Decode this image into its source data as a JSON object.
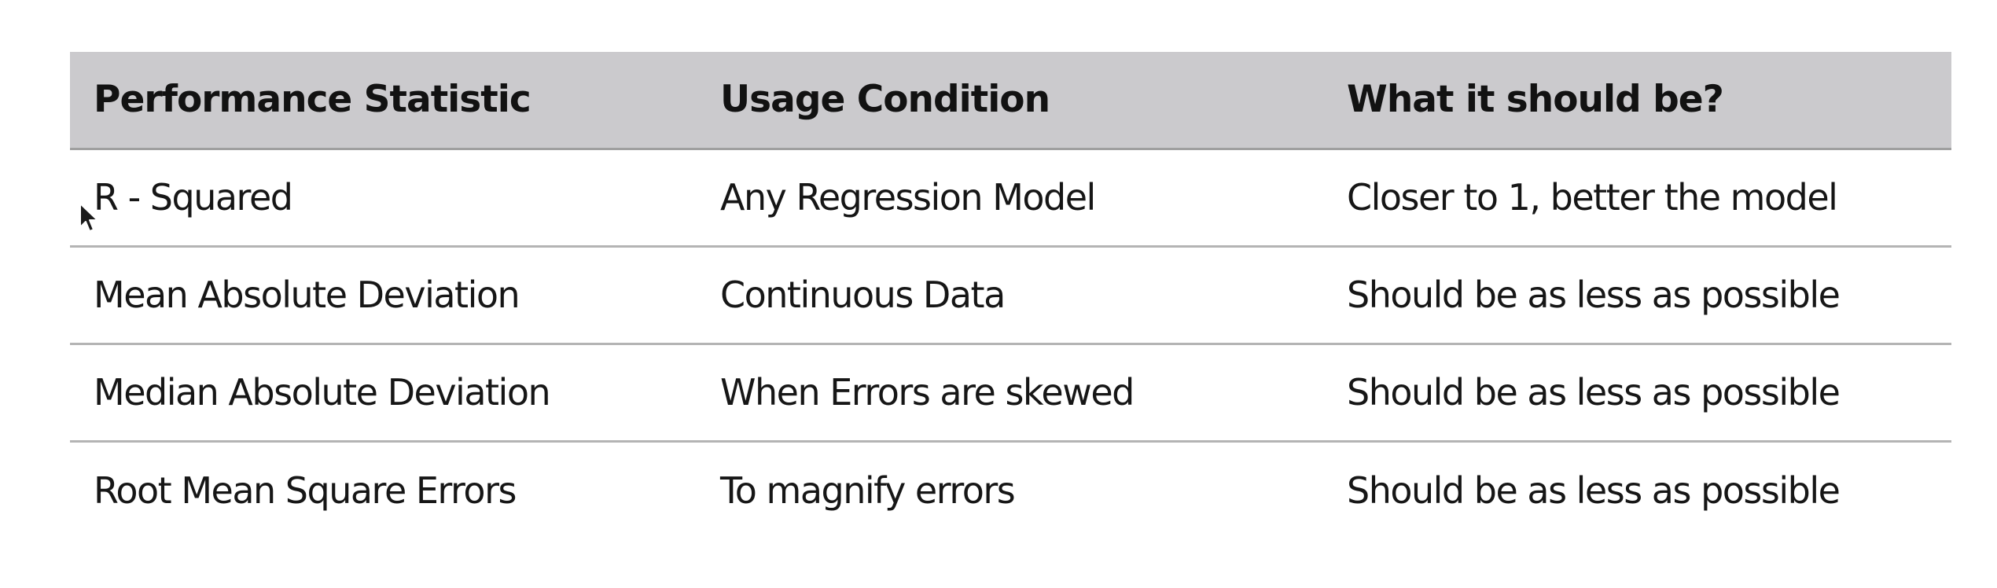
{
  "table": {
    "headers": [
      "Performance Statistic",
      "Usage Condition",
      "What it should be?"
    ],
    "rows": [
      [
        "R - Squared",
        "Any Regression Model",
        "Closer to 1, better the model"
      ],
      [
        "Mean Absolute Deviation",
        "Continuous Data",
        "Should be as less as possible"
      ],
      [
        "Median Absolute Deviation",
        "When Errors are skewed",
        "Should be as less as possible"
      ],
      [
        "Root Mean Square Errors",
        "To magnify errors",
        "Should be as less as possible"
      ]
    ]
  },
  "colors": {
    "header_background": "#cbcacd",
    "row_divider": "#b4b4b4",
    "text": "#161616"
  },
  "icons": {
    "cursor": "mouse-pointer-icon"
  }
}
